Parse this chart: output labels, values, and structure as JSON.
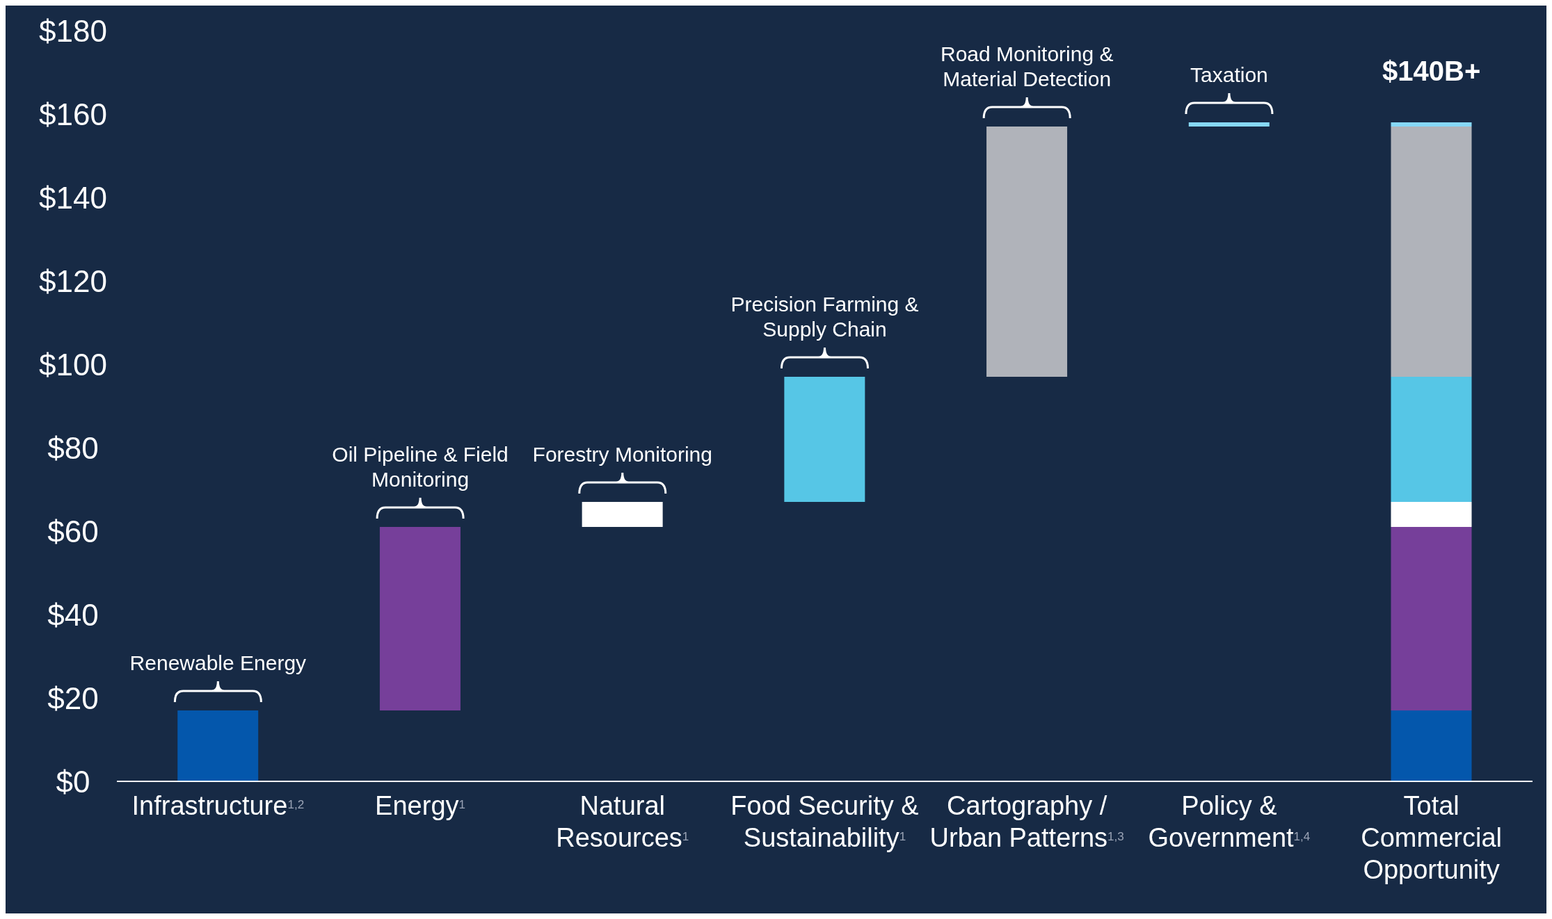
{
  "chart_data": {
    "type": "bar",
    "categories": [
      "Infrastructure$^{1,2}$",
      "Energy$^{1}$",
      "Natural Resources$^{1}$",
      "Food Security & Sustainability$^{1}$",
      "Cartography / Urban Patterns$^{1,3}$",
      "Policy & Government$^{1,4}$",
      "Total Commercial Opportunity"
    ],
    "series": [
      {
        "color": "#0457ac",
        "values": [
          17,
          null,
          null,
          null,
          null,
          null,
          17
        ],
        "base": [
          0,
          null,
          null,
          null,
          null,
          null,
          0
        ]
      },
      {
        "color": "#763f9a",
        "values": [
          null,
          44,
          null,
          null,
          null,
          null,
          44
        ],
        "base": [
          null,
          17,
          null,
          null,
          null,
          null,
          17
        ]
      },
      {
        "color": "#ffffff",
        "values": [
          null,
          null,
          6,
          null,
          null,
          null,
          6
        ],
        "base": [
          null,
          null,
          61,
          null,
          null,
          null,
          61
        ]
      },
      {
        "color": "#56c6e6",
        "values": [
          null,
          null,
          null,
          30,
          null,
          null,
          30
        ],
        "base": [
          null,
          null,
          null,
          67,
          null,
          null,
          67
        ]
      },
      {
        "color": "#b0b3ba",
        "values": [
          null,
          null,
          null,
          null,
          60,
          null,
          60
        ],
        "base": [
          null,
          null,
          null,
          null,
          97,
          null,
          97
        ]
      },
      {
        "color": "#86d8f7",
        "values": [
          null,
          null,
          null,
          null,
          null,
          1,
          1
        ],
        "base": [
          null,
          null,
          null,
          null,
          null,
          157,
          157
        ]
      }
    ],
    "ylim": [
      0,
      180
    ],
    "yticks": [
      {
        "value": 0,
        "label": "$0"
      },
      {
        "value": 20,
        "label": "$20"
      },
      {
        "value": 40,
        "label": "$40"
      },
      {
        "value": 60,
        "label": "$60"
      },
      {
        "value": 80,
        "label": "$80"
      },
      {
        "value": 100,
        "label": "$100"
      },
      {
        "value": 120,
        "label": "$120"
      },
      {
        "value": 140,
        "label": "$140"
      },
      {
        "value": 160,
        "label": "$160"
      },
      {
        "value": 180,
        "label": "$180"
      }
    ],
    "annotations": [
      "Renewable Energy",
      "Oil Pipeline & Field Monitoring",
      "Forestry Monitoring",
      "Precision Farming & Supply Chain",
      "Road Monitoring & Material Detection",
      "Taxation",
      "$140B+"
    ]
  }
}
